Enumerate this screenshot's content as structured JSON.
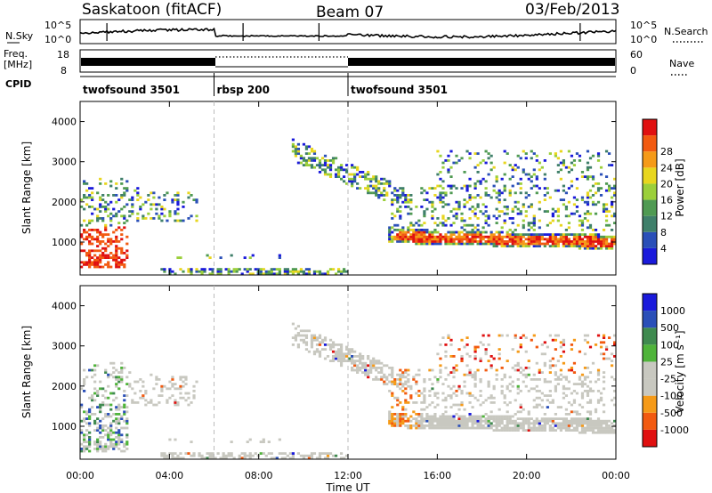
{
  "header": {
    "station": "Saskatoon (fitACF)",
    "beam": "Beam 07",
    "date": "03/Feb/2013"
  },
  "top_panels": {
    "nsky_label": "N.Sky",
    "nsearch_label": "N.Search",
    "freq_label": "Freq.",
    "freq_unit": "[MHz]",
    "nave_label": "Nave",
    "cpid_label": "CPID",
    "noise_ticks": [
      "10^5",
      "10^0"
    ],
    "freq_ticks": [
      "18",
      "8"
    ],
    "nave_ticks": [
      "60",
      "0"
    ]
  },
  "colors": {
    "power_scale": [
      "#1a1adb",
      "#2a4fb8",
      "#3f7f6a",
      "#4f9a52",
      "#9bcf3a",
      "#e8d61e",
      "#f59a18",
      "#f25a10",
      "#e01010"
    ],
    "velocity_scale": [
      "#e01010",
      "#f25a10",
      "#f59a18",
      "#c8c8c0",
      "#c8c8c0",
      "#4fb43a",
      "#3f8a4f",
      "#2a4fb8",
      "#1a1adb"
    ]
  },
  "chart_data": [
    {
      "type": "heatmap",
      "title": "Power",
      "xlabel": "",
      "ylabel": "Slant Range [km]",
      "x_range": [
        "00:00",
        "24:00"
      ],
      "ylim": [
        180,
        4500
      ],
      "yticks": [
        1000,
        2000,
        3000,
        4000
      ],
      "colorbar": {
        "label": "Power [dB]",
        "range": [
          0,
          32
        ],
        "ticks": [
          "4",
          "8",
          "12",
          "16",
          "20",
          "24",
          "28"
        ]
      }
    },
    {
      "type": "heatmap",
      "title": "Velocity",
      "xlabel": "Time UT",
      "ylabel": "Slant Range [km]",
      "x_range": [
        "00:00",
        "24:00"
      ],
      "ylim": [
        180,
        4500
      ],
      "yticks": [
        1000,
        2000,
        3000,
        4000
      ],
      "xticks": [
        "00:00",
        "04:00",
        "08:00",
        "12:00",
        "16:00",
        "20:00",
        "00:00"
      ],
      "colorbar": {
        "label": "Velocity [m s⁻¹]",
        "ticks": [
          "1000",
          "500",
          "100",
          "25",
          "-25",
          "-100",
          "-500",
          "-1000"
        ]
      }
    }
  ],
  "cpid_segments": [
    {
      "label": "twofsound 3501",
      "start_hour": 0,
      "end_hour": 6
    },
    {
      "label": "rbsp 200",
      "start_hour": 6,
      "end_hour": 12
    },
    {
      "label": "twofsound 3501",
      "start_hour": 12,
      "end_hour": 24
    }
  ]
}
